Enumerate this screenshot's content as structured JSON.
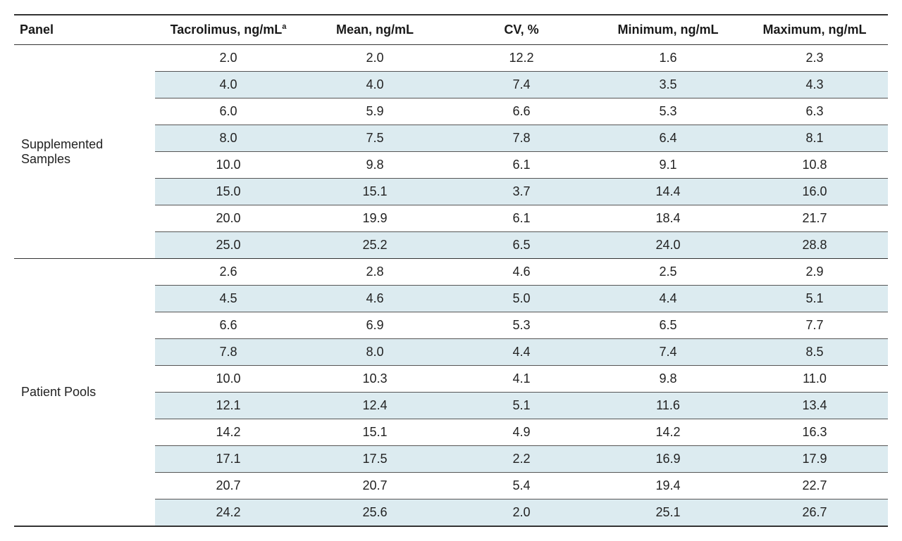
{
  "columns": {
    "panel": "Panel",
    "tacrolimus": "Tacrolimus, ng/mL",
    "tacrolimus_sup": "a",
    "mean": "Mean, ng/mL",
    "cv": "CV, %",
    "min": "Minimum, ng/mL",
    "max": "Maximum, ng/mL"
  },
  "sections": [
    {
      "label": "Supplemented Samples",
      "rows": [
        {
          "tac": "2.0",
          "mean": "2.0",
          "cv": "12.2",
          "min": "1.6",
          "max": "2.3"
        },
        {
          "tac": "4.0",
          "mean": "4.0",
          "cv": "7.4",
          "min": "3.5",
          "max": "4.3"
        },
        {
          "tac": "6.0",
          "mean": "5.9",
          "cv": "6.6",
          "min": "5.3",
          "max": "6.3"
        },
        {
          "tac": "8.0",
          "mean": "7.5",
          "cv": "7.8",
          "min": "6.4",
          "max": "8.1"
        },
        {
          "tac": "10.0",
          "mean": "9.8",
          "cv": "6.1",
          "min": "9.1",
          "max": "10.8"
        },
        {
          "tac": "15.0",
          "mean": "15.1",
          "cv": "3.7",
          "min": "14.4",
          "max": "16.0"
        },
        {
          "tac": "20.0",
          "mean": "19.9",
          "cv": "6.1",
          "min": "18.4",
          "max": "21.7"
        },
        {
          "tac": "25.0",
          "mean": "25.2",
          "cv": "6.5",
          "min": "24.0",
          "max": "28.8"
        }
      ]
    },
    {
      "label": "Patient Pools",
      "rows": [
        {
          "tac": "2.6",
          "mean": "2.8",
          "cv": "4.6",
          "min": "2.5",
          "max": "2.9"
        },
        {
          "tac": "4.5",
          "mean": "4.6",
          "cv": "5.0",
          "min": "4.4",
          "max": "5.1"
        },
        {
          "tac": "6.6",
          "mean": "6.9",
          "cv": "5.3",
          "min": "6.5",
          "max": "7.7"
        },
        {
          "tac": "7.8",
          "mean": "8.0",
          "cv": "4.4",
          "min": "7.4",
          "max": "8.5"
        },
        {
          "tac": "10.0",
          "mean": "10.3",
          "cv": "4.1",
          "min": "9.8",
          "max": "11.0"
        },
        {
          "tac": "12.1",
          "mean": "12.4",
          "cv": "5.1",
          "min": "11.6",
          "max": "13.4"
        },
        {
          "tac": "14.2",
          "mean": "15.1",
          "cv": "4.9",
          "min": "14.2",
          "max": "16.3"
        },
        {
          "tac": "17.1",
          "mean": "17.5",
          "cv": "2.2",
          "min": "16.9",
          "max": "17.9"
        },
        {
          "tac": "20.7",
          "mean": "20.7",
          "cv": "5.4",
          "min": "19.4",
          "max": "22.7"
        },
        {
          "tac": "24.2",
          "mean": "25.6",
          "cv": "2.0",
          "min": "25.1",
          "max": "26.7"
        }
      ]
    }
  ],
  "style": {
    "stripe_color": "#dcebf0",
    "background_color": "#ffffff",
    "border_color": "#333333",
    "row_border_color": "#555555",
    "text_color": "#1a1a1a",
    "font_size_pt": 14
  }
}
